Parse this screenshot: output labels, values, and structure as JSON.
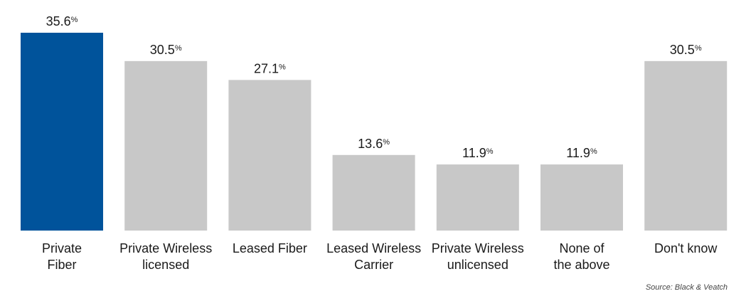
{
  "chart_data": {
    "type": "bar",
    "categories": [
      [
        "Private",
        "Fiber"
      ],
      [
        "Private Wireless",
        "licensed"
      ],
      [
        "Leased Fiber"
      ],
      [
        "Leased Wireless",
        "Carrier"
      ],
      [
        "Private Wireless",
        "unlicensed"
      ],
      [
        "None of",
        "the above"
      ],
      [
        "Don't know"
      ]
    ],
    "values": [
      35.6,
      30.5,
      27.1,
      13.6,
      11.9,
      11.9,
      30.5
    ],
    "value_labels": [
      "35.6",
      "30.5",
      "27.1",
      "13.6",
      "11.9",
      "11.9",
      "30.5"
    ],
    "value_suffix": "%",
    "highlight_index": 0,
    "colors": {
      "highlight": "#00539B",
      "default": "#C8C8C8"
    },
    "ylim": [
      0,
      35.6
    ],
    "grid": false,
    "legend": "none"
  },
  "source": "Source: Black & Veatch"
}
